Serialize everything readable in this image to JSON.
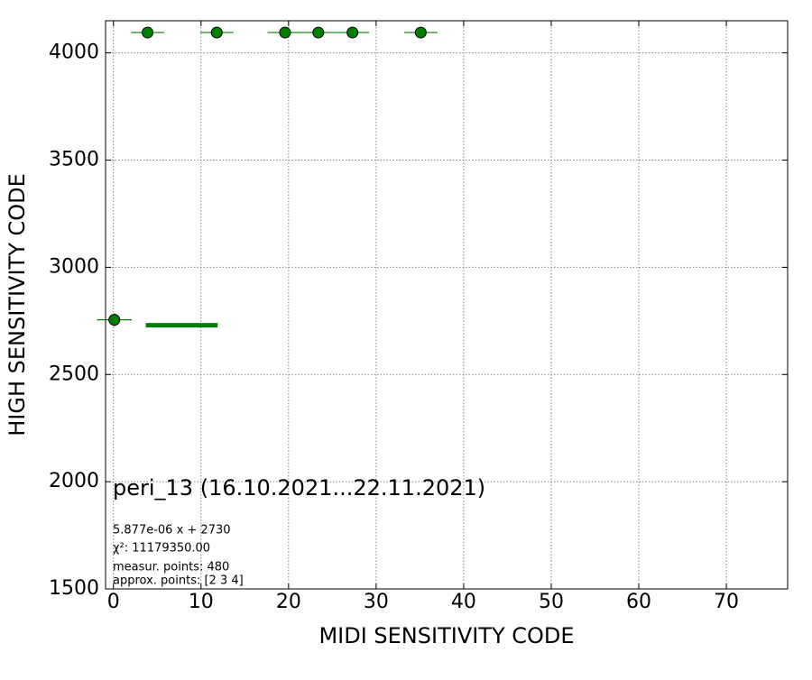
{
  "chart_data": {
    "type": "scatter",
    "xlabel": "MIDI SENSITIVITY CODE",
    "ylabel": "HIGH SENSITIVITY CODE",
    "x": [
      0.1,
      3.9,
      11.8,
      19.6,
      23.4,
      27.3,
      35.1
    ],
    "values": [
      2755,
      4095,
      4095,
      4095,
      4095,
      4095,
      4095
    ],
    "xerr": [
      2,
      1.9,
      1.9,
      2,
      2,
      1.9,
      1.9
    ],
    "yerr": [
      30,
      0,
      0,
      0,
      0,
      0,
      0
    ],
    "color": "#008000",
    "fit": {
      "x": [
        3.7,
        11.9
      ],
      "values": [
        2730,
        2730
      ],
      "color": "#008000"
    },
    "xlim": [
      -0.9,
      77
    ],
    "ylim": [
      1500,
      4150
    ],
    "xticks": [
      0,
      10,
      20,
      30,
      40,
      50,
      60,
      70
    ],
    "yticks": [
      1500,
      2000,
      2500,
      3000,
      3500,
      4000
    ],
    "grid": true,
    "annotations": [
      "peri_13 (16.10.2021...22.11.2021)",
      "5.877e-06 x + 2730",
      "χ²: 11179350.00",
      "measur. points: 480",
      "approx. points: [2 3 4]"
    ]
  }
}
